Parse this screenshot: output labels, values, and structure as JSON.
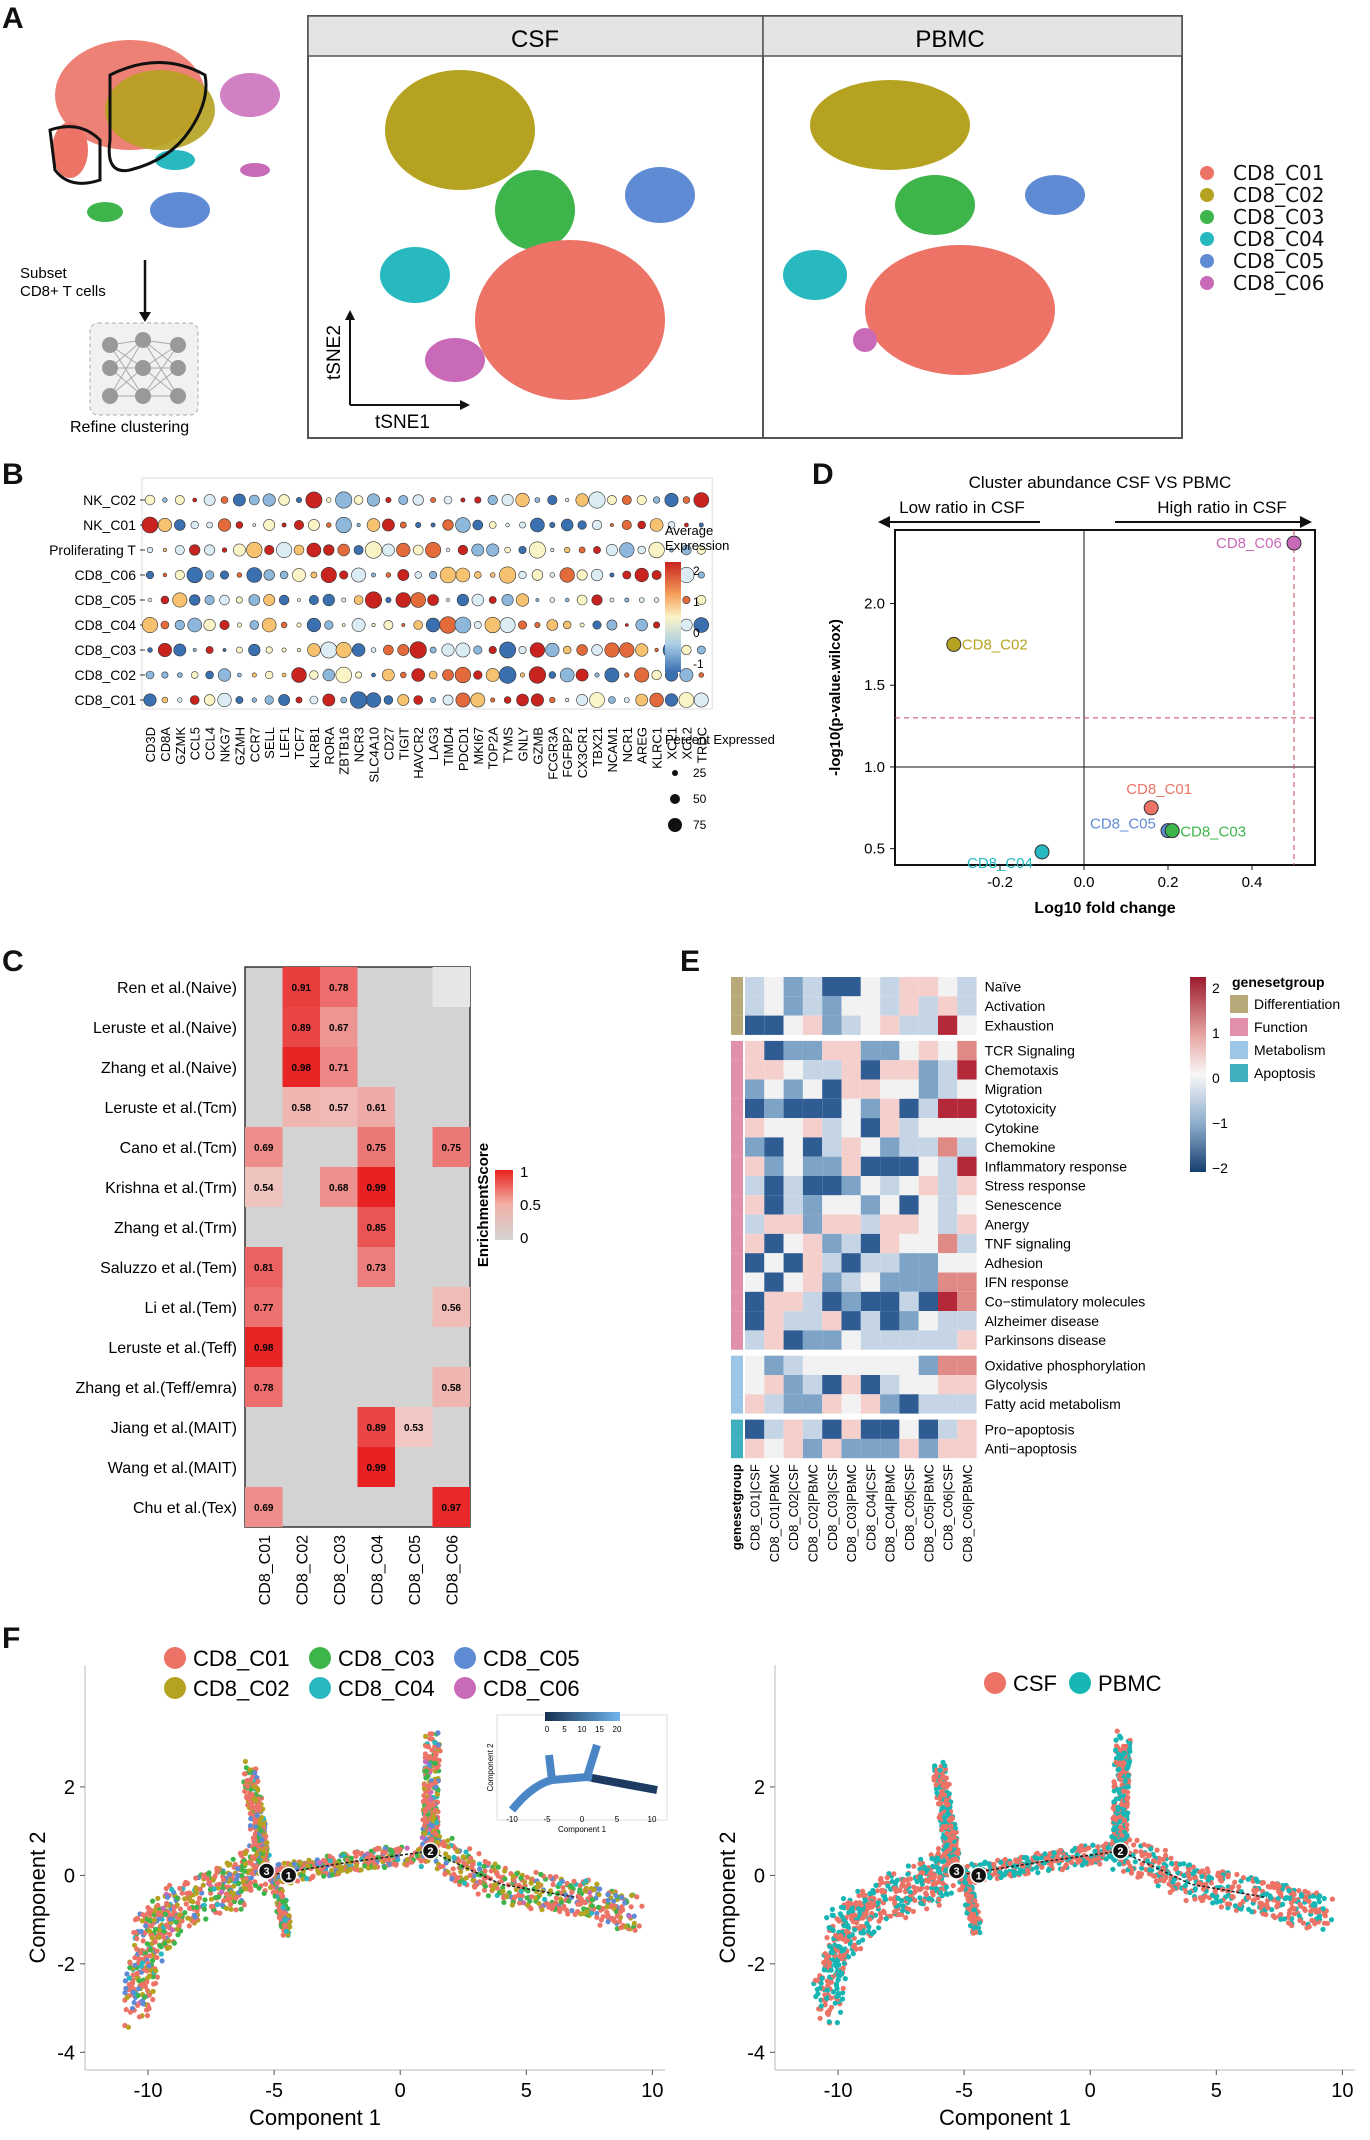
{
  "panel_labels": {
    "A": "A",
    "B": "B",
    "C": "C",
    "D": "D",
    "E": "E",
    "F": "F"
  },
  "colors": {
    "C01": "#ec7366",
    "C02": "#b5a220",
    "C03": "#3db54a",
    "C04": "#27b8c0",
    "C05": "#5f8ad4",
    "C06": "#c86ab8",
    "CSF": "#ec7366",
    "PBMC": "#17b6b4"
  },
  "panelA": {
    "facet_left": "CSF",
    "facet_right": "PBMC",
    "subset_text_1": "Subset",
    "subset_text_2": "CD8+ T cells",
    "refine_text": "Refine clustering",
    "axis_y": "tSNE2",
    "axis_x": "tSNE1",
    "legend": [
      "CD8_C01",
      "CD8_C02",
      "CD8_C03",
      "CD8_C04",
      "CD8_C05",
      "CD8_C06"
    ]
  },
  "panelB": {
    "rows": [
      "NK_C02",
      "NK_C01",
      "Proliferating T",
      "CD8_C06",
      "CD8_C05",
      "CD8_C04",
      "CD8_C03",
      "CD8_C02",
      "CD8_C01"
    ],
    "genes": [
      "CD3D",
      "CD8A",
      "GZMK",
      "CCL5",
      "CCL4",
      "NKG7",
      "GZMH",
      "CCR7",
      "SELL",
      "LEF1",
      "TCF7",
      "KLRB1",
      "RORA",
      "ZBTB16",
      "NCR3",
      "SLC4A10",
      "CD27",
      "TIGIT",
      "HAVCR2",
      "LAG3",
      "TIMD4",
      "PDCD1",
      "MKI67",
      "TOP2A",
      "TYMS",
      "GNLY",
      "GZMB",
      "FCGR3A",
      "FGFBP2",
      "CX3CR1",
      "TBX21",
      "NCAM1",
      "NCR1",
      "AREG",
      "KLRC1",
      "XCL1",
      "XCL2",
      "TRDC"
    ],
    "legend_title_1": "Average",
    "legend_title_2": "Expression",
    "color_ticks": [
      "2",
      "1",
      "0",
      "-1"
    ],
    "size_title": "Percent Expressed",
    "size_ticks": [
      "25",
      "50",
      "75"
    ]
  },
  "panelC": {
    "rows": [
      "Ren et al.(Naive)",
      "Leruste et al.(Naive)",
      "Zhang et al.(Naive)",
      "Leruste et al.(Tcm)",
      "Cano et al.(Tcm)",
      "Krishna et al.(Trm)",
      "Zhang et al.(Trm)",
      "Saluzzo et al.(Tem)",
      "Li et al.(Tem)",
      "Leruste et al.(Teff)",
      "Zhang et al.(Teff/emra)",
      "Jiang et al.(MAIT)",
      "Wang et al.(MAIT)",
      "Chu et al.(Tex)"
    ],
    "cols": [
      "CD8_C01",
      "CD8_C02",
      "CD8_C03",
      "CD8_C04",
      "CD8_C05",
      "CD8_C06"
    ],
    "cells": [
      [
        null,
        "0.91",
        "0.78",
        null,
        null,
        null
      ],
      [
        null,
        "0.89",
        "0.67",
        null,
        null,
        null
      ],
      [
        null,
        "0.98",
        "0.71",
        null,
        null,
        null
      ],
      [
        null,
        "0.58",
        "0.57",
        "0.61",
        null,
        null
      ],
      [
        "0.69",
        null,
        null,
        "0.75",
        null,
        "0.75"
      ],
      [
        "0.54",
        null,
        "0.68",
        "0.99",
        null,
        null
      ],
      [
        null,
        null,
        null,
        "0.85",
        null,
        null
      ],
      [
        "0.81",
        null,
        null,
        "0.73",
        null,
        null
      ],
      [
        "0.77",
        null,
        null,
        null,
        null,
        "0.56"
      ],
      [
        "0.98",
        null,
        null,
        null,
        null,
        null
      ],
      [
        "0.78",
        null,
        null,
        null,
        null,
        "0.58"
      ],
      [
        null,
        null,
        null,
        "0.89",
        "0.53",
        null
      ],
      [
        null,
        null,
        null,
        "0.99",
        null,
        null
      ],
      [
        "0.69",
        null,
        null,
        null,
        null,
        "0.97"
      ]
    ],
    "legend_title": "EnrichmentScore",
    "legend_ticks": [
      "1",
      "0.5",
      "0"
    ]
  },
  "chart_data": [
    {
      "type": "scatter",
      "title": "Cluster abundance CSF VS PBMC",
      "arrow_left": "Low ratio in CSF",
      "arrow_right": "High ratio in CSF",
      "xlabel": "Log10 fold change",
      "ylabel": "-log10(p-value.wilcox)",
      "xlim": [
        -0.45,
        0.55
      ],
      "ylim": [
        0.4,
        2.45
      ],
      "xticks": [
        "-0.2",
        "0.0",
        "0.2",
        "0.4"
      ],
      "yticks": [
        "0.5",
        "1.0",
        "1.5",
        "2.0"
      ],
      "points": [
        {
          "label": "CD8_C06",
          "x": 0.5,
          "y": 2.37,
          "color": "#c86ab8"
        },
        {
          "label": "CD8_C02",
          "x": -0.31,
          "y": 1.75,
          "color": "#b5a220"
        },
        {
          "label": "CD8_C01",
          "x": 0.16,
          "y": 0.75,
          "color": "#ec7366"
        },
        {
          "label": "CD8_C05",
          "x": 0.2,
          "y": 0.61,
          "color": "#5f8ad4"
        },
        {
          "label": "CD8_C03",
          "x": 0.21,
          "y": 0.61,
          "color": "#3db54a"
        },
        {
          "label": "CD8_C04",
          "x": -0.1,
          "y": 0.48,
          "color": "#27b8c0"
        }
      ],
      "hline_dashed": 1.3,
      "vline_dashed": 0.5,
      "hline": 1.0,
      "vline": 0.0
    }
  ],
  "panelE": {
    "rows": [
      "Naïve",
      "Activation",
      "Exhaustion",
      "TCR Signaling",
      "Chemotaxis",
      "Migration",
      "Cytotoxicity",
      "Cytokine",
      "Chemokine",
      "Inflammatory response",
      "Stress response",
      "Senescence",
      "Anergy",
      "TNF signaling",
      "Adhesion",
      "IFN response",
      "Co−stimulatory molecules",
      "Alzheimer disease",
      "Parkinsons disease",
      "Oxidative phosphorylation",
      "Glycolysis",
      "Fatty acid metabolism",
      "Pro−apoptosis",
      "Anti−apoptosis"
    ],
    "cols": [
      "CD8_C01|CSF",
      "CD8_C01|PBMC",
      "CD8_C02|CSF",
      "CD8_C02|PBMC",
      "CD8_C03|CSF",
      "CD8_C03|PBMC",
      "CD8_C04|CSF",
      "CD8_C04|PBMC",
      "CD8_C05|CSF",
      "CD8_C05|PBMC",
      "CD8_C06|CSF",
      "CD8_C06|PBMC"
    ],
    "group_axis_label": "genesetgroup",
    "legend_title": "genesetgroup",
    "groups": [
      "Differentiation",
      "Function",
      "Metabolism",
      "Apoptosis"
    ],
    "group_colors": [
      "#b7a97a",
      "#e18fab",
      "#9cc6e8",
      "#3fb0bd"
    ],
    "color_ticks": [
      "2",
      "1",
      "0",
      "−1",
      "−2"
    ]
  },
  "panelF": {
    "legend_left": [
      "CD8_C01",
      "CD8_C03",
      "CD8_C05",
      "CD8_C02",
      "CD8_C04",
      "CD8_C06"
    ],
    "legend_right": [
      "CSF",
      "PBMC"
    ],
    "xlabel": "Component 1",
    "ylabel": "Component 2",
    "xticks": [
      "-10",
      "-5",
      "0",
      "5",
      "10"
    ],
    "yticks": [
      "2",
      "0",
      "-2",
      "-4"
    ],
    "inset_ticks": [
      "0",
      "5",
      "10",
      "15",
      "20"
    ],
    "inset_xlabel": "Component 1",
    "inset_ylabel": "Component 2",
    "inset_xticks": [
      "-10",
      "-5",
      "0",
      "5",
      "10"
    ],
    "nodes": [
      "3",
      "1",
      "2"
    ]
  }
}
